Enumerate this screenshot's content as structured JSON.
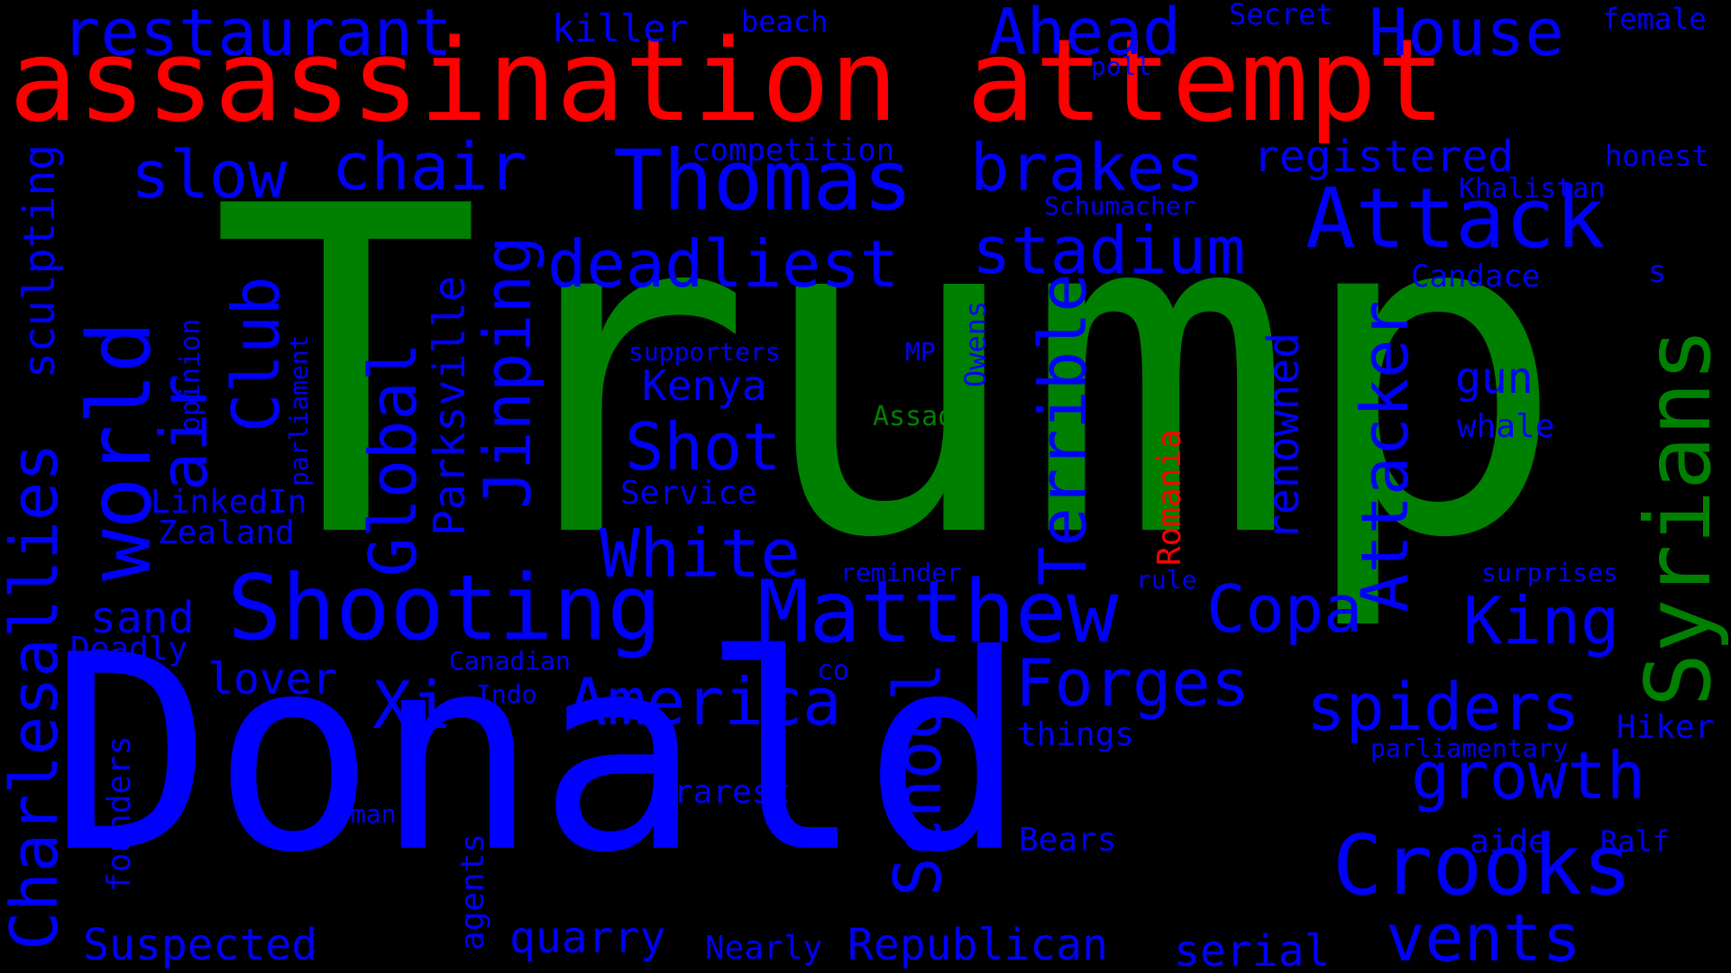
{
  "cloud": {
    "colors": {
      "background": "#000000",
      "primary": "#0000ff",
      "accent": "#ff0000",
      "highlight": "#008000"
    },
    "words": [
      {
        "text": "Trump",
        "color": "#008000",
        "vertical": false
      },
      {
        "text": "Donald",
        "color": "#0000ff",
        "vertical": false
      },
      {
        "text": "assassination attempt",
        "color": "#ff0000",
        "vertical": false
      },
      {
        "text": "Thomas",
        "color": "#0000ff",
        "vertical": false
      },
      {
        "text": "Attack",
        "color": "#0000ff",
        "vertical": false
      },
      {
        "text": "Shooting",
        "color": "#0000ff",
        "vertical": false
      },
      {
        "text": "Matthew",
        "color": "#0000ff",
        "vertical": false
      },
      {
        "text": "Crooks",
        "color": "#0000ff",
        "vertical": false
      },
      {
        "text": "restaurant",
        "color": "#0000ff",
        "vertical": false
      },
      {
        "text": "Ahead",
        "color": "#0000ff",
        "vertical": false
      },
      {
        "text": "House",
        "color": "#0000ff",
        "vertical": false
      },
      {
        "text": "chair",
        "color": "#0000ff",
        "vertical": false
      },
      {
        "text": "slow",
        "color": "#0000ff",
        "vertical": false
      },
      {
        "text": "brakes",
        "color": "#0000ff",
        "vertical": false
      },
      {
        "text": "deadliest",
        "color": "#0000ff",
        "vertical": false
      },
      {
        "text": "stadium",
        "color": "#0000ff",
        "vertical": false
      },
      {
        "text": "White",
        "color": "#0000ff",
        "vertical": false
      },
      {
        "text": "Shot",
        "color": "#0000ff",
        "vertical": false
      },
      {
        "text": "America",
        "color": "#0000ff",
        "vertical": false
      },
      {
        "text": "Copa",
        "color": "#0000ff",
        "vertical": false
      },
      {
        "text": "Forges",
        "color": "#0000ff",
        "vertical": false
      },
      {
        "text": "spiders",
        "color": "#0000ff",
        "vertical": false
      },
      {
        "text": "growth",
        "color": "#0000ff",
        "vertical": false
      },
      {
        "text": "vents",
        "color": "#0000ff",
        "vertical": false
      },
      {
        "text": "King",
        "color": "#0000ff",
        "vertical": false
      },
      {
        "text": "Xi",
        "color": "#0000ff",
        "vertical": false
      },
      {
        "text": "registered",
        "color": "#0000ff",
        "vertical": false
      },
      {
        "text": "killer",
        "color": "#0000ff",
        "vertical": false
      },
      {
        "text": "beach",
        "color": "#0000ff",
        "vertical": false
      },
      {
        "text": "Secret",
        "color": "#0000ff",
        "vertical": false
      },
      {
        "text": "female",
        "color": "#0000ff",
        "vertical": false
      },
      {
        "text": "poll",
        "color": "#0000ff",
        "vertical": false
      },
      {
        "text": "competition",
        "color": "#0000ff",
        "vertical": false
      },
      {
        "text": "honest",
        "color": "#0000ff",
        "vertical": false
      },
      {
        "text": "Khalistan",
        "color": "#0000ff",
        "vertical": false
      },
      {
        "text": "Schumacher",
        "color": "#0000ff",
        "vertical": false
      },
      {
        "text": "Candace",
        "color": "#0000ff",
        "vertical": false
      },
      {
        "text": "s",
        "color": "#0000ff",
        "vertical": false
      },
      {
        "text": "Kenya",
        "color": "#0000ff",
        "vertical": false
      },
      {
        "text": "supporters",
        "color": "#0000ff",
        "vertical": false
      },
      {
        "text": "MP",
        "color": "#0000ff",
        "vertical": false
      },
      {
        "text": "gun",
        "color": "#0000ff",
        "vertical": false
      },
      {
        "text": "whale",
        "color": "#0000ff",
        "vertical": false
      },
      {
        "text": "Assad",
        "color": "#008000",
        "vertical": false
      },
      {
        "text": "Service",
        "color": "#0000ff",
        "vertical": false
      },
      {
        "text": "LinkedIn",
        "color": "#0000ff",
        "vertical": false
      },
      {
        "text": "Zealand",
        "color": "#0000ff",
        "vertical": false
      },
      {
        "text": "sand",
        "color": "#0000ff",
        "vertical": false
      },
      {
        "text": "Deadly",
        "color": "#0000ff",
        "vertical": false
      },
      {
        "text": "lover",
        "color": "#0000ff",
        "vertical": false
      },
      {
        "text": "Canadian",
        "color": "#0000ff",
        "vertical": false
      },
      {
        "text": "Indo",
        "color": "#0000ff",
        "vertical": false
      },
      {
        "text": "co",
        "color": "#0000ff",
        "vertical": false
      },
      {
        "text": "reminder",
        "color": "#0000ff",
        "vertical": false
      },
      {
        "text": "rule",
        "color": "#0000ff",
        "vertical": false
      },
      {
        "text": "surprises",
        "color": "#0000ff",
        "vertical": false
      },
      {
        "text": "things",
        "color": "#0000ff",
        "vertical": false
      },
      {
        "text": "Hiker",
        "color": "#0000ff",
        "vertical": false
      },
      {
        "text": "parliamentary",
        "color": "#0000ff",
        "vertical": false
      },
      {
        "text": "rarest",
        "color": "#0000ff",
        "vertical": false
      },
      {
        "text": "man",
        "color": "#0000ff",
        "vertical": false
      },
      {
        "text": "Bears",
        "color": "#0000ff",
        "vertical": false
      },
      {
        "text": "aide",
        "color": "#0000ff",
        "vertical": false
      },
      {
        "text": "Ralf",
        "color": "#0000ff",
        "vertical": false
      },
      {
        "text": "Suspected",
        "color": "#0000ff",
        "vertical": false
      },
      {
        "text": "quarry",
        "color": "#0000ff",
        "vertical": false
      },
      {
        "text": "Nearly",
        "color": "#0000ff",
        "vertical": false
      },
      {
        "text": "Republican",
        "color": "#0000ff",
        "vertical": false
      },
      {
        "text": "serial",
        "color": "#0000ff",
        "vertical": false
      },
      {
        "text": "Syrians",
        "color": "#008000",
        "vertical": true
      },
      {
        "text": "Charlesallies",
        "color": "#0000ff",
        "vertical": true
      },
      {
        "text": "sculpting",
        "color": "#0000ff",
        "vertical": true
      },
      {
        "text": "world",
        "color": "#0000ff",
        "vertical": true
      },
      {
        "text": "air",
        "color": "#0000ff",
        "vertical": true
      },
      {
        "text": "Club",
        "color": "#0000ff",
        "vertical": true
      },
      {
        "text": "opinion",
        "color": "#0000ff",
        "vertical": true
      },
      {
        "text": "parliament",
        "color": "#0000ff",
        "vertical": true
      },
      {
        "text": "Global",
        "color": "#0000ff",
        "vertical": true
      },
      {
        "text": "Parksville",
        "color": "#0000ff",
        "vertical": true
      },
      {
        "text": "Jinping",
        "color": "#0000ff",
        "vertical": true
      },
      {
        "text": "Terrible",
        "color": "#0000ff",
        "vertical": true
      },
      {
        "text": "Attacker",
        "color": "#0000ff",
        "vertical": true
      },
      {
        "text": "renowned",
        "color": "#0000ff",
        "vertical": true
      },
      {
        "text": "Romania",
        "color": "#ff0000",
        "vertical": true
      },
      {
        "text": "Owens",
        "color": "#0000ff",
        "vertical": true
      },
      {
        "text": "School",
        "color": "#0000ff",
        "vertical": true
      },
      {
        "text": "founders",
        "color": "#0000ff",
        "vertical": true
      },
      {
        "text": "agents",
        "color": "#0000ff",
        "vertical": true
      }
    ]
  }
}
